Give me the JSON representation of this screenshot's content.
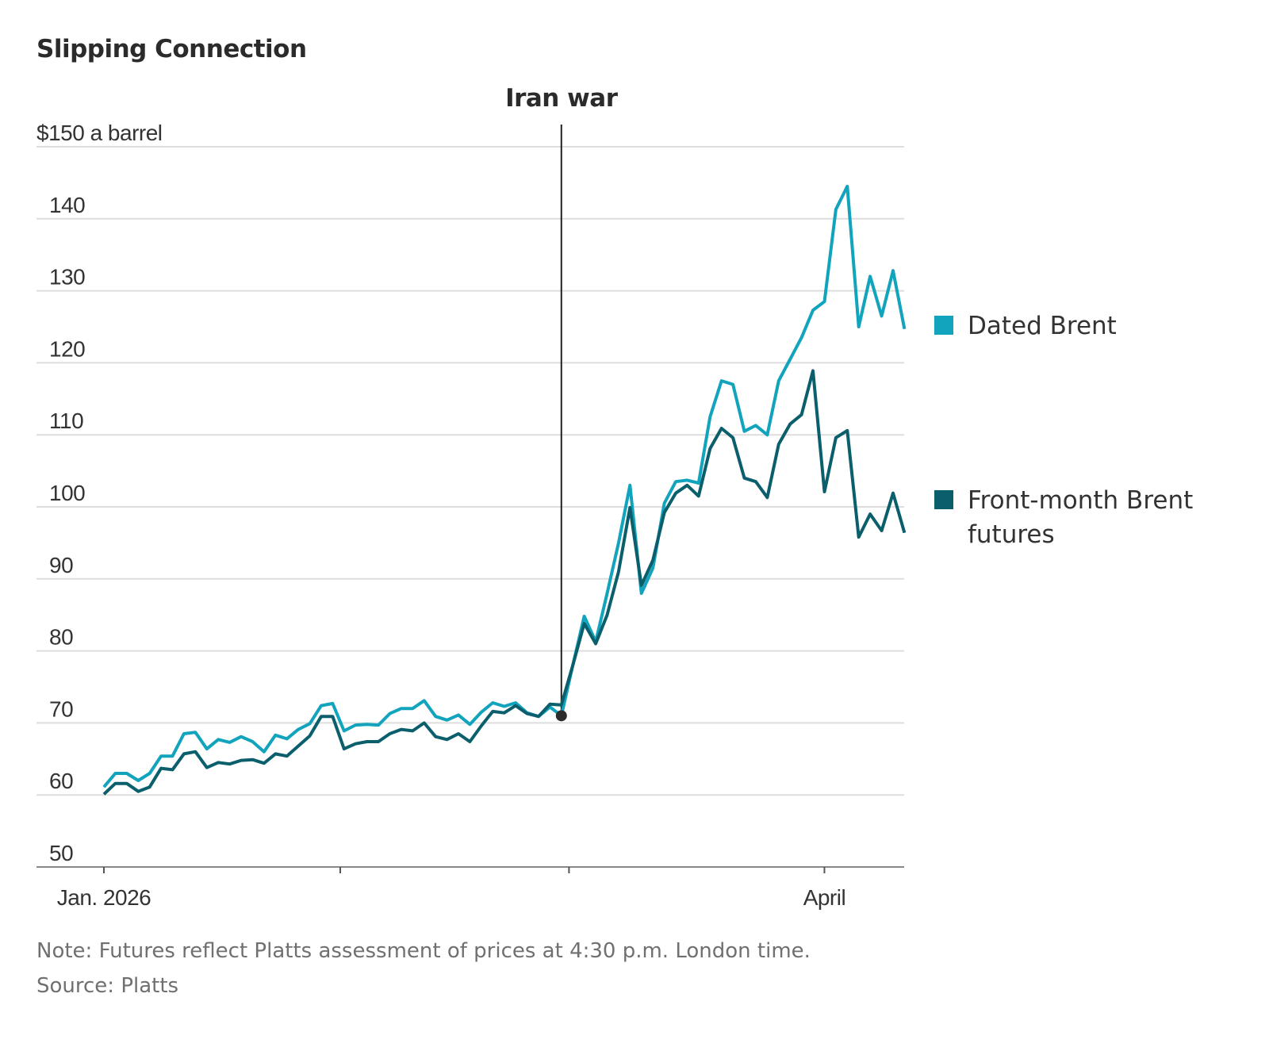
{
  "chart_data": {
    "type": "line",
    "title": "Slipping Connection",
    "ylabel": "",
    "xlabel": "",
    "ylim": [
      50,
      150
    ],
    "y_ticks": [
      {
        "value": 150,
        "label": "$150 a barrel"
      },
      {
        "value": 140,
        "label": "140"
      },
      {
        "value": 130,
        "label": "130"
      },
      {
        "value": 120,
        "label": "120"
      },
      {
        "value": 110,
        "label": "110"
      },
      {
        "value": 100,
        "label": "100"
      },
      {
        "value": 90,
        "label": "90"
      },
      {
        "value": 80,
        "label": "80"
      },
      {
        "value": 70,
        "label": "70"
      },
      {
        "value": 60,
        "label": "60"
      },
      {
        "value": 50,
        "label": "50"
      }
    ],
    "x_ticks": [
      {
        "date": "2026-01-02",
        "label": "Jan. 2026"
      },
      {
        "date": "2026-02-01",
        "label": ""
      },
      {
        "date": "2026-03-01",
        "label": ""
      },
      {
        "date": "2026-04-01",
        "label": "April"
      }
    ],
    "grid": true,
    "legend_position": "right",
    "annotation": {
      "date": "2026-02-27",
      "label": "Iran war",
      "value": 71.0
    },
    "x": [
      "2026-01-02",
      "2026-01-05",
      "2026-01-06",
      "2026-01-07",
      "2026-01-08",
      "2026-01-09",
      "2026-01-12",
      "2026-01-13",
      "2026-01-14",
      "2026-01-15",
      "2026-01-16",
      "2026-01-19",
      "2026-01-20",
      "2026-01-21",
      "2026-01-22",
      "2026-01-23",
      "2026-01-26",
      "2026-01-27",
      "2026-01-28",
      "2026-01-29",
      "2026-01-30",
      "2026-02-02",
      "2026-02-03",
      "2026-02-04",
      "2026-02-05",
      "2026-02-06",
      "2026-02-09",
      "2026-02-10",
      "2026-02-11",
      "2026-02-12",
      "2026-02-13",
      "2026-02-16",
      "2026-02-17",
      "2026-02-18",
      "2026-02-19",
      "2026-02-20",
      "2026-02-23",
      "2026-02-24",
      "2026-02-25",
      "2026-02-26",
      "2026-02-27",
      "2026-03-02",
      "2026-03-03",
      "2026-03-04",
      "2026-03-05",
      "2026-03-06",
      "2026-03-09",
      "2026-03-10",
      "2026-03-11",
      "2026-03-12",
      "2026-03-13",
      "2026-03-16",
      "2026-03-17",
      "2026-03-18",
      "2026-03-19",
      "2026-03-20",
      "2026-03-23",
      "2026-03-24",
      "2026-03-25",
      "2026-03-26",
      "2026-03-27",
      "2026-03-30",
      "2026-03-31",
      "2026-04-01",
      "2026-04-02",
      "2026-04-03",
      "2026-04-06",
      "2026-04-07",
      "2026-04-08",
      "2026-04-09",
      "2026-04-10"
    ],
    "series": [
      {
        "name": "Dated Brent",
        "color": "#12a3bd",
        "values": [
          61.1,
          63.0,
          63.0,
          62.0,
          63.0,
          65.4,
          65.4,
          68.5,
          68.7,
          66.4,
          67.7,
          67.3,
          68.1,
          67.4,
          66.0,
          68.3,
          67.8,
          69.1,
          69.9,
          72.4,
          72.7,
          68.9,
          69.7,
          69.8,
          69.7,
          71.3,
          72.0,
          72.0,
          73.1,
          70.9,
          70.4,
          71.1,
          69.8,
          71.5,
          72.8,
          72.3,
          72.8,
          71.4,
          70.9,
          72.2,
          71.0,
          78.0,
          84.8,
          81.3,
          88.0,
          95.0,
          103.0,
          88.0,
          91.5,
          100.5,
          103.5,
          103.7,
          103.3,
          112.5,
          117.5,
          117.0,
          110.5,
          111.3,
          110.0,
          117.5,
          120.5,
          123.5,
          127.3,
          128.5,
          141.3,
          144.5,
          125.0,
          132.0,
          126.5,
          132.8,
          124.7
        ]
      },
      {
        "name": "Front-month Brent futures",
        "color": "#0b5f6c",
        "values": [
          60.1,
          61.6,
          61.6,
          60.5,
          61.1,
          63.7,
          63.5,
          65.7,
          66.0,
          63.8,
          64.5,
          64.3,
          64.8,
          64.9,
          64.4,
          65.7,
          65.4,
          66.8,
          68.2,
          70.9,
          70.9,
          66.4,
          67.1,
          67.4,
          67.4,
          68.5,
          69.1,
          68.9,
          70.0,
          68.1,
          67.7,
          68.5,
          67.4,
          69.6,
          71.6,
          71.4,
          72.4,
          71.3,
          70.9,
          72.6,
          72.5,
          78.0,
          83.8,
          81.0,
          85.0,
          91.0,
          99.9,
          89.1,
          92.6,
          99.2,
          101.9,
          103.0,
          101.5,
          108.1,
          110.9,
          109.6,
          104.0,
          103.5,
          101.3,
          108.7,
          111.5,
          112.8,
          118.9,
          102.1,
          109.6,
          110.6,
          95.8,
          99.0,
          96.7,
          101.9,
          96.4
        ]
      }
    ]
  },
  "legend": {
    "items": [
      {
        "label_lines": [
          "Dated Brent"
        ],
        "color": "#12a3bd"
      },
      {
        "label_lines": [
          "Front-month Brent",
          "futures"
        ],
        "color": "#0b5f6c"
      }
    ]
  },
  "footer": {
    "note": "Note: Futures reflect Platts assessment of prices at 4:30 p.m. London time.",
    "source": "Source: Platts"
  }
}
